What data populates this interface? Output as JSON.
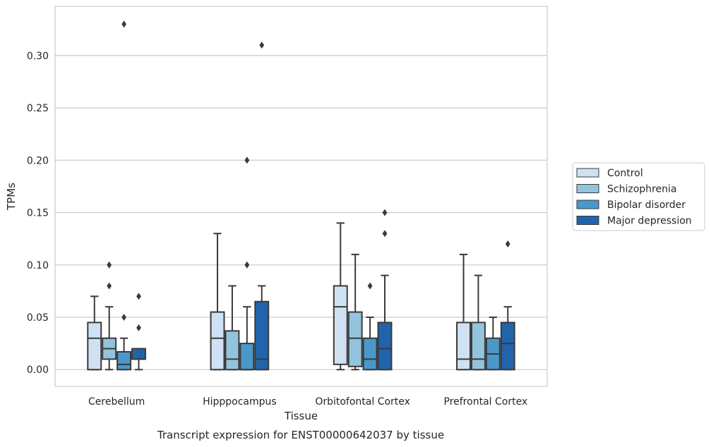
{
  "chart_data": {
    "type": "box",
    "caption": "Transcript expression for ENST00000642037 by tissue",
    "xlabel": "Tissue",
    "ylabel": "TPMs",
    "ylim": [
      -0.016,
      0.347
    ],
    "yticks": [
      0.0,
      0.05,
      0.1,
      0.15,
      0.2,
      0.25,
      0.3
    ],
    "ytick_labels": [
      "0.00",
      "0.05",
      "0.10",
      "0.15",
      "0.20",
      "0.25",
      "0.30"
    ],
    "grid": "horizontal",
    "legend_position": "outside-right",
    "categories": [
      "Cerebellum",
      "Hipppocampus",
      "Orbitofontal Cortex",
      "Prefrontal Cortex"
    ],
    "series": [
      {
        "name": "Control",
        "color": "#cfe1f2",
        "boxes": [
          {
            "whisker_low": 0.0,
            "q1": 0.0,
            "median": 0.03,
            "q3": 0.045,
            "whisker_high": 0.07,
            "outliers": []
          },
          {
            "whisker_low": 0.0,
            "q1": 0.0,
            "median": 0.03,
            "q3": 0.055,
            "whisker_high": 0.13,
            "outliers": []
          },
          {
            "whisker_low": 0.0,
            "q1": 0.005,
            "median": 0.06,
            "q3": 0.08,
            "whisker_high": 0.14,
            "outliers": []
          },
          {
            "whisker_low": 0.0,
            "q1": 0.0,
            "median": 0.01,
            "q3": 0.045,
            "whisker_high": 0.11,
            "outliers": []
          }
        ]
      },
      {
        "name": "Schizophrenia",
        "color": "#93c4de",
        "boxes": [
          {
            "whisker_low": 0.0,
            "q1": 0.01,
            "median": 0.02,
            "q3": 0.03,
            "whisker_high": 0.06,
            "outliers": [
              0.08,
              0.1
            ]
          },
          {
            "whisker_low": 0.0,
            "q1": 0.0,
            "median": 0.01,
            "q3": 0.037,
            "whisker_high": 0.08,
            "outliers": []
          },
          {
            "whisker_low": 0.0,
            "q1": 0.003,
            "median": 0.03,
            "q3": 0.055,
            "whisker_high": 0.11,
            "outliers": []
          },
          {
            "whisker_low": 0.0,
            "q1": 0.0,
            "median": 0.01,
            "q3": 0.045,
            "whisker_high": 0.09,
            "outliers": []
          }
        ]
      },
      {
        "name": "Bipolar disorder",
        "color": "#4a98c9",
        "boxes": [
          {
            "whisker_low": 0.0,
            "q1": 0.0,
            "median": 0.005,
            "q3": 0.017,
            "whisker_high": 0.03,
            "outliers": [
              0.05,
              0.33
            ]
          },
          {
            "whisker_low": 0.0,
            "q1": 0.0,
            "median": 0.0,
            "q3": 0.025,
            "whisker_high": 0.06,
            "outliers": [
              0.1,
              0.2
            ]
          },
          {
            "whisker_low": 0.0,
            "q1": 0.0,
            "median": 0.01,
            "q3": 0.03,
            "whisker_high": 0.05,
            "outliers": [
              0.08
            ]
          },
          {
            "whisker_low": 0.0,
            "q1": 0.0,
            "median": 0.015,
            "q3": 0.03,
            "whisker_high": 0.05,
            "outliers": []
          }
        ]
      },
      {
        "name": "Major depression",
        "color": "#2164ab",
        "boxes": [
          {
            "whisker_low": 0.0,
            "q1": 0.01,
            "median": 0.01,
            "q3": 0.02,
            "whisker_high": 0.02,
            "outliers": [
              0.04,
              0.07
            ]
          },
          {
            "whisker_low": 0.0,
            "q1": 0.0,
            "median": 0.01,
            "q3": 0.065,
            "whisker_high": 0.08,
            "outliers": [
              0.31
            ]
          },
          {
            "whisker_low": 0.0,
            "q1": 0.0,
            "median": 0.02,
            "q3": 0.045,
            "whisker_high": 0.09,
            "outliers": [
              0.13,
              0.15
            ]
          },
          {
            "whisker_low": 0.0,
            "q1": 0.0,
            "median": 0.025,
            "q3": 0.045,
            "whisker_high": 0.06,
            "outliers": [
              0.12
            ]
          }
        ]
      }
    ]
  }
}
